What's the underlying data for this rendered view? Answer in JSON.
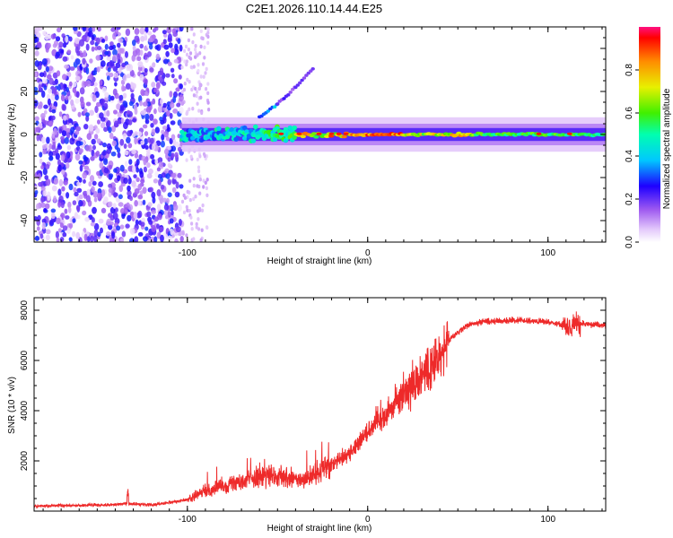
{
  "title": "C2E1.2026.110.14.44.E25",
  "colors": {
    "snr_line": "#ee2a2a",
    "frame": "#000000",
    "background": "#ffffff"
  },
  "chart_data": [
    {
      "type": "heatmap",
      "name": "spectrogram",
      "xlabel": "Height of straight line (km)",
      "ylabel": "Frequency (Hz)",
      "xlim": [
        -185,
        132
      ],
      "ylim": [
        -50,
        50
      ],
      "xticks": [
        -100,
        0,
        100
      ],
      "xtick_labels": [
        "-100",
        "0",
        "100"
      ],
      "yticks": [
        -40,
        -20,
        0,
        20,
        40
      ],
      "ytick_labels": [
        "-40",
        "-20",
        "0",
        "20",
        "40"
      ],
      "colorbar": {
        "label": "Normalized spectral amplitude",
        "range": [
          0,
          1
        ],
        "ticks": [
          0.0,
          0.2,
          0.4,
          0.6,
          0.8
        ],
        "tick_labels": [
          "0.0",
          "0.2",
          "0.4",
          "0.6",
          "0.8"
        ]
      },
      "features": {
        "noise_band_x": [
          -185,
          -103
        ],
        "sparse_noise_x": [
          -103,
          -88
        ],
        "carrier_frequency_hz": 0,
        "carrier_x": [
          -103,
          132
        ],
        "drifting_tone": [
          [
            -60,
            8
          ],
          [
            -50,
            14
          ],
          [
            -40,
            22
          ],
          [
            -30,
            31
          ]
        ]
      }
    },
    {
      "type": "line",
      "name": "snr",
      "xlabel": "Height of straight line (km)",
      "ylabel": "SNR (10 * v/v)",
      "xlim": [
        -185,
        132
      ],
      "ylim": [
        0,
        8500
      ],
      "xticks": [
        -100,
        0,
        100
      ],
      "xtick_labels": [
        "-100",
        "0",
        "100"
      ],
      "yticks": [
        2000,
        4000,
        6000,
        8000
      ],
      "ytick_labels": [
        "2000",
        "4000",
        "6000",
        "8000"
      ],
      "trend": {
        "x": [
          -185,
          -140,
          -135,
          -120,
          -100,
          -90,
          -75,
          -60,
          -45,
          -35,
          -20,
          -10,
          0,
          10,
          20,
          30,
          40,
          45,
          55,
          65,
          80,
          95,
          105,
          110,
          115,
          120,
          132
        ],
        "y": [
          200,
          250,
          300,
          250,
          450,
          800,
          1100,
          1400,
          1300,
          1200,
          1900,
          2300,
          3200,
          3900,
          4700,
          5400,
          6200,
          6800,
          7400,
          7550,
          7600,
          7550,
          7500,
          7350,
          7450,
          7450,
          7400
        ]
      }
    }
  ]
}
